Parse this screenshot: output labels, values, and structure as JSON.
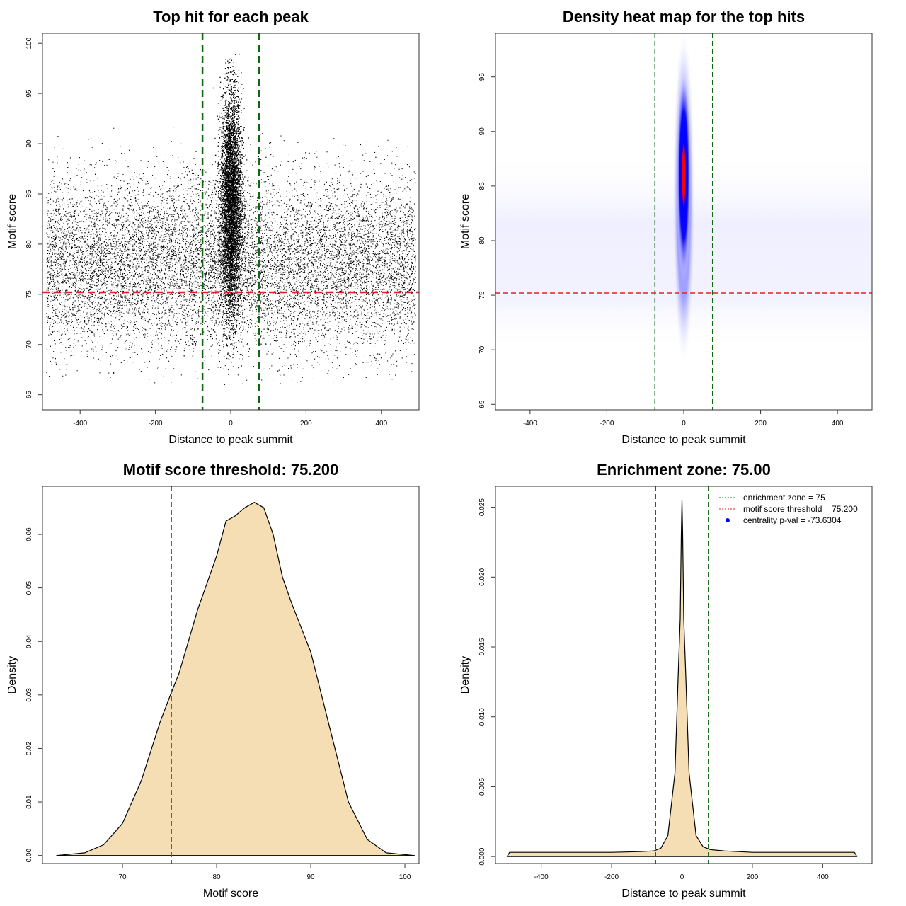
{
  "chart_data": [
    {
      "type": "scatter",
      "title": "Top hit for each peak",
      "xlabel": "Distance to peak summit",
      "ylabel": "Motif score",
      "xlim": [
        -500,
        500
      ],
      "ylim": [
        63.5,
        101
      ],
      "xticks": [
        -400,
        -200,
        0,
        200,
        400
      ],
      "yticks": [
        65,
        70,
        75,
        80,
        85,
        90,
        95,
        100
      ],
      "grid": false,
      "hlines": [
        {
          "y": 75.2,
          "color": "#e3202a",
          "style": "dashed"
        }
      ],
      "vlines": [
        {
          "x": -75,
          "color": "#116611",
          "style": "dashed"
        },
        {
          "x": 75,
          "color": "#116611",
          "style": "dashed"
        }
      ],
      "point_color": "#000000",
      "clusters": [
        {
          "description": "background hits",
          "x_range": [
            -490,
            490
          ],
          "y_center": 78,
          "y_sd": 4.3
        },
        {
          "description": "central enrichment",
          "x_center": 0,
          "x_sd": 14,
          "y_center": 84,
          "y_sd": 5.5
        }
      ]
    },
    {
      "type": "heatmap",
      "title": "Density heat map for the top hits",
      "xlabel": "Distance to peak summit",
      "ylabel": "Motif score",
      "xlim": [
        -490,
        490
      ],
      "ylim": [
        64.5,
        99
      ],
      "xticks": [
        -400,
        -200,
        0,
        200,
        400
      ],
      "yticks": [
        65,
        70,
        75,
        80,
        85,
        90,
        95
      ],
      "colors": [
        "#ffffff",
        "#0000ff",
        "#ff0000"
      ],
      "hlines": [
        {
          "y": 75.2,
          "color": "#e3202a",
          "style": "dashed"
        }
      ],
      "vlines": [
        {
          "x": -75,
          "color": "#116611",
          "style": "dashed"
        },
        {
          "x": 75,
          "color": "#116611",
          "style": "dashed"
        }
      ],
      "peak": {
        "x": 0,
        "y": 86
      }
    },
    {
      "type": "area",
      "title": "Motif score threshold: 75.200",
      "xlabel": "Motif score",
      "ylabel": "Density",
      "xlim": [
        61.5,
        101.5
      ],
      "ylim": [
        -0.0015,
        0.069
      ],
      "xticks": [
        70,
        80,
        90,
        100
      ],
      "yticks": [
        0.0,
        0.01,
        0.02,
        0.03,
        0.04,
        0.05,
        0.06
      ],
      "ytick_labels": [
        "0.00",
        "0.01",
        "0.02",
        "0.03",
        "0.04",
        "0.05",
        "0.06"
      ],
      "fill": "#f5deb3",
      "vlines": [
        {
          "x": 75.2,
          "color": "#e3202a",
          "style": "dashed"
        }
      ],
      "x": [
        63,
        66,
        68,
        70,
        72,
        74,
        75.2,
        76,
        78,
        80,
        81,
        82,
        83,
        84,
        85,
        86,
        87,
        88,
        90,
        92,
        94,
        96,
        98,
        101
      ],
      "y": [
        0.0,
        0.0005,
        0.002,
        0.006,
        0.014,
        0.025,
        0.0305,
        0.034,
        0.046,
        0.056,
        0.0625,
        0.0635,
        0.065,
        0.066,
        0.065,
        0.06,
        0.052,
        0.047,
        0.038,
        0.024,
        0.01,
        0.003,
        0.0005,
        0.0
      ]
    },
    {
      "type": "area",
      "title": "Enrichment zone: 75.00",
      "xlabel": "Distance to peak summit",
      "ylabel": "Density",
      "xlim": [
        -530,
        540
      ],
      "ylim": [
        -0.0005,
        0.0265
      ],
      "xticks": [
        -400,
        -200,
        0,
        200,
        400
      ],
      "yticks": [
        0.0,
        0.005,
        0.01,
        0.015,
        0.02,
        0.025
      ],
      "ytick_labels": [
        "0.000",
        "0.005",
        "0.010",
        "0.015",
        "0.020",
        "0.025"
      ],
      "fill": "#f5deb3",
      "vlines": [
        {
          "x": -75,
          "color": "#116611",
          "style": "dashed"
        },
        {
          "x": 75,
          "color": "#116611",
          "style": "dashed"
        }
      ],
      "x": [
        -497,
        -490,
        -400,
        -300,
        -200,
        -120,
        -80,
        -60,
        -40,
        -20,
        -10,
        -5,
        -2,
        0,
        2,
        5,
        10,
        20,
        40,
        60,
        80,
        120,
        200,
        300,
        400,
        490,
        497
      ],
      "y": [
        0.0,
        0.0003,
        0.0003,
        0.0003,
        0.0003,
        0.00035,
        0.0004,
        0.0006,
        0.0015,
        0.006,
        0.0135,
        0.017,
        0.023,
        0.0255,
        0.023,
        0.017,
        0.0135,
        0.006,
        0.0015,
        0.0007,
        0.0005,
        0.0004,
        0.0003,
        0.0003,
        0.0003,
        0.0003,
        0.0
      ],
      "legend": {
        "position": "top-right",
        "entries": [
          {
            "label": "enrichment zone = 75",
            "color": "#116611",
            "symbol": "dotted-line"
          },
          {
            "label": "motif score threshold = 75.200",
            "color": "#e3202a",
            "symbol": "dotted-line"
          },
          {
            "label": "centrality p-val = -73.6304",
            "color": "#0000ff",
            "symbol": "point"
          }
        ]
      }
    }
  ]
}
